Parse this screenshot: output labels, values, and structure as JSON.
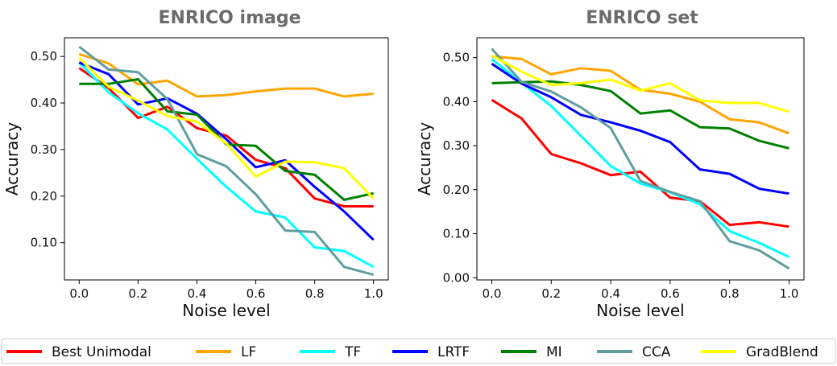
{
  "chart_data": [
    {
      "type": "line",
      "title": "ENRICO image",
      "xlabel": "Noise level",
      "ylabel": "Accuracy",
      "x": [
        0.0,
        0.1,
        0.2,
        0.3,
        0.4,
        0.5,
        0.6,
        0.7,
        0.8,
        0.9,
        1.0
      ],
      "xticks": [
        "0.0",
        "0.2",
        "0.4",
        "0.6",
        "0.8",
        "1.0"
      ],
      "yticks": [
        "0.10",
        "0.20",
        "0.30",
        "0.40",
        "0.50"
      ],
      "xlim": [
        -0.05,
        1.05
      ],
      "ylim": [
        0.02,
        0.54
      ],
      "grid": false,
      "series": [
        {
          "name": "Best Unimodal",
          "color": "#ff0000",
          "values": [
            0.475,
            0.432,
            0.368,
            0.392,
            0.346,
            0.33,
            0.278,
            0.26,
            0.195,
            0.178,
            0.178
          ]
        },
        {
          "name": "LF",
          "color": "#ffa500",
          "values": [
            0.505,
            0.485,
            0.44,
            0.448,
            0.414,
            0.417,
            0.425,
            0.431,
            0.431,
            0.414,
            0.42
          ]
        },
        {
          "name": "TF",
          "color": "#00ffff",
          "values": [
            0.487,
            0.423,
            0.378,
            0.343,
            0.28,
            0.22,
            0.167,
            0.154,
            0.09,
            0.082,
            0.048
          ]
        },
        {
          "name": "LRTF",
          "color": "#0000ff",
          "values": [
            0.487,
            0.462,
            0.397,
            0.41,
            0.377,
            0.322,
            0.262,
            0.277,
            0.22,
            0.167,
            0.106
          ]
        },
        {
          "name": "MI",
          "color": "#008000",
          "values": [
            0.441,
            0.441,
            0.451,
            0.382,
            0.375,
            0.311,
            0.308,
            0.254,
            0.246,
            0.192,
            0.206
          ]
        },
        {
          "name": "CCA",
          "color": "#5f9ea0",
          "values": [
            0.521,
            0.472,
            0.466,
            0.408,
            0.29,
            0.264,
            0.204,
            0.126,
            0.123,
            0.048,
            0.031
          ]
        },
        {
          "name": "GradBlend",
          "color": "#ffff00",
          "values": [
            0.497,
            0.435,
            0.405,
            0.372,
            0.36,
            0.313,
            0.242,
            0.274,
            0.273,
            0.26,
            0.195
          ]
        }
      ]
    },
    {
      "type": "line",
      "title": "ENRICO set",
      "xlabel": "Noise level",
      "ylabel": "Accuracy",
      "x": [
        0.0,
        0.1,
        0.2,
        0.3,
        0.4,
        0.5,
        0.6,
        0.7,
        0.8,
        0.9,
        1.0
      ],
      "xticks": [
        "0.0",
        "0.2",
        "0.4",
        "0.6",
        "0.8",
        "1.0"
      ],
      "yticks": [
        "0.00",
        "0.10",
        "0.20",
        "0.30",
        "0.40",
        "0.50"
      ],
      "xlim": [
        -0.05,
        1.05
      ],
      "ylim": [
        -0.005,
        0.545
      ],
      "grid": false,
      "series": [
        {
          "name": "Best Unimodal",
          "color": "#ff0000",
          "values": [
            0.404,
            0.362,
            0.281,
            0.26,
            0.233,
            0.241,
            0.182,
            0.174,
            0.12,
            0.126,
            0.116
          ]
        },
        {
          "name": "LF",
          "color": "#ffa500",
          "values": [
            0.503,
            0.497,
            0.462,
            0.476,
            0.47,
            0.427,
            0.418,
            0.4,
            0.36,
            0.353,
            0.328
          ]
        },
        {
          "name": "TF",
          "color": "#00ffff",
          "values": [
            0.497,
            0.443,
            0.39,
            0.322,
            0.254,
            0.214,
            0.194,
            0.167,
            0.106,
            0.079,
            0.047
          ]
        },
        {
          "name": "LRTF",
          "color": "#0000ff",
          "values": [
            0.486,
            0.441,
            0.41,
            0.37,
            0.353,
            0.334,
            0.308,
            0.246,
            0.236,
            0.202,
            0.191
          ]
        },
        {
          "name": "MI",
          "color": "#008000",
          "values": [
            0.442,
            0.444,
            0.446,
            0.438,
            0.424,
            0.373,
            0.38,
            0.342,
            0.339,
            0.311,
            0.294
          ]
        },
        {
          "name": "CCA",
          "color": "#5f9ea0",
          "values": [
            0.52,
            0.445,
            0.423,
            0.387,
            0.34,
            0.22,
            0.195,
            0.174,
            0.083,
            0.062,
            0.021
          ]
        },
        {
          "name": "GradBlend",
          "color": "#ffff00",
          "values": [
            0.505,
            0.468,
            0.438,
            0.442,
            0.45,
            0.425,
            0.442,
            0.403,
            0.397,
            0.397,
            0.377
          ]
        }
      ]
    }
  ],
  "legend": {
    "placement": "bottom",
    "entries": [
      {
        "label": "Best Unimodal",
        "color": "#ff0000"
      },
      {
        "label": "LF",
        "color": "#ffa500"
      },
      {
        "label": "TF",
        "color": "#00ffff"
      },
      {
        "label": "LRTF",
        "color": "#0000ff"
      },
      {
        "label": "MI",
        "color": "#008000"
      },
      {
        "label": "CCA",
        "color": "#5f9ea0"
      },
      {
        "label": "GradBlend",
        "color": "#ffff00"
      }
    ]
  }
}
